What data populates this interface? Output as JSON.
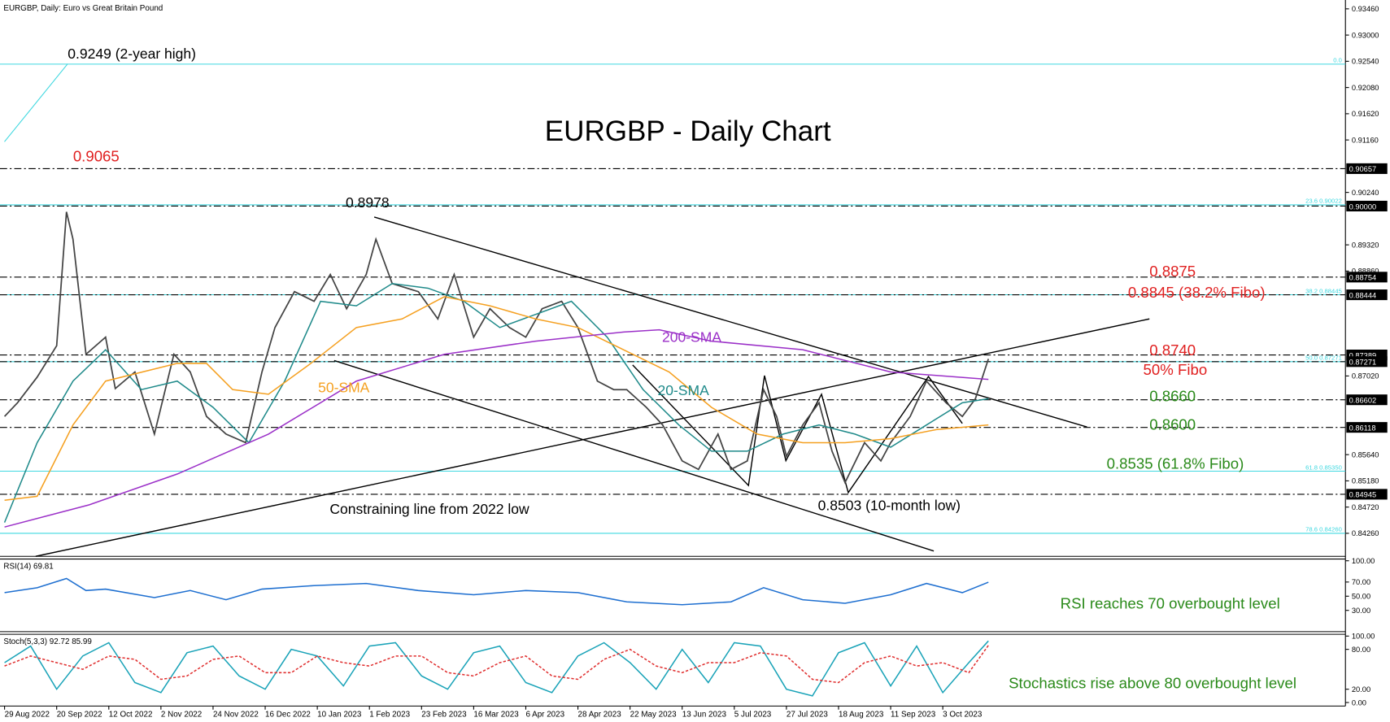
{
  "chart_data": [
    {
      "type": "line",
      "title": "EURGBP - Daily Chart",
      "subtitle": "EURGBP, Daily:  Euro vs Great Britain Pound",
      "xlim": [
        -1.4,
        411.6
      ],
      "xticks": [
        {
          "value": 0,
          "label": "29 Aug 2022"
        },
        {
          "value": 16,
          "label": "20 Sep 2022"
        },
        {
          "value": 32,
          "label": "12 Oct 2022"
        },
        {
          "value": 48,
          "label": "2 Nov 2022"
        },
        {
          "value": 64,
          "label": "24 Nov 2022"
        },
        {
          "value": 80,
          "label": "16 Dec 2022"
        },
        {
          "value": 96,
          "label": "10 Jan 2023"
        },
        {
          "value": 112,
          "label": "1 Feb 2023"
        },
        {
          "value": 128,
          "label": "23 Feb 2023"
        },
        {
          "value": 144,
          "label": "16 Mar 2023"
        },
        {
          "value": 160,
          "label": "6 Apr 2023"
        },
        {
          "value": 176,
          "label": "28 Apr 2023"
        },
        {
          "value": 192,
          "label": "22 May 2023"
        },
        {
          "value": 208,
          "label": "13 Jun 2023"
        },
        {
          "value": 224,
          "label": "5 Jul 2023"
        },
        {
          "value": 240,
          "label": "27 Jul 2023"
        },
        {
          "value": 256,
          "label": "18 Aug 2023"
        },
        {
          "value": 272,
          "label": "11 Sep 2023"
        },
        {
          "value": 288,
          "label": "3 Oct 2023"
        }
      ],
      "ylim": [
        0.83856,
        0.93615
      ],
      "yticks": [
        {
          "value": 0.9346,
          "label": "0.93460"
        },
        {
          "value": 0.93,
          "label": "0.93000"
        },
        {
          "value": 0.9254,
          "label": "0.92540"
        },
        {
          "value": 0.9208,
          "label": "0.92080"
        },
        {
          "value": 0.9162,
          "label": "0.91620"
        },
        {
          "value": 0.9116,
          "label": "0.91160"
        },
        {
          "value": 0.9024,
          "label": "0.90240"
        },
        {
          "value": 0.8932,
          "label": "0.89320"
        },
        {
          "value": 0.8886,
          "label": "0.88860"
        },
        {
          "value": 0.8702,
          "label": "0.87020"
        },
        {
          "value": 0.8564,
          "label": "0.85640"
        },
        {
          "value": 0.8518,
          "label": "0.85180"
        },
        {
          "value": 0.8472,
          "label": "0.84720"
        },
        {
          "value": 0.8426,
          "label": "0.84260"
        }
      ],
      "marked_levels": [
        0.90657,
        {
          "value": 0.9,
          "label": "0.90000"
        },
        0.88754,
        0.88444,
        0.87389,
        0.87271,
        0.86602,
        0.86118,
        0.84945
      ],
      "fibo_color": "#3fd8e0",
      "fibo_levels": [
        {
          "value": 0.9249,
          "label": "0.0"
        },
        {
          "value": 0.90022,
          "label": "23.6 0.90022"
        },
        {
          "value": 0.88445,
          "label": "38.2 0.88445"
        },
        {
          "value": 0.87271,
          "label": "50.0 0.87271"
        },
        {
          "value": 0.8535,
          "label": "61.8 0.85350"
        },
        {
          "value": 0.8426,
          "label": "78.6 0.84260"
        }
      ],
      "series": [
        {
          "color": "#444444",
          "x": [
            0,
            4,
            10,
            16,
            19,
            21,
            25,
            31,
            34,
            40,
            46,
            52,
            57,
            62,
            68,
            74,
            79,
            83,
            89,
            95,
            100,
            105,
            111,
            114,
            119,
            127,
            133,
            138,
            144,
            149,
            155,
            160,
            165,
            171,
            176,
            182,
            187,
            191,
            197,
            202,
            208,
            213,
            219,
            223,
            228,
            233,
            237,
            240,
            245,
            250,
            254,
            258,
            264,
            269,
            272,
            278,
            283,
            289,
            294,
            298,
            302
          ],
          "values": [
            0.8631,
            0.8655,
            0.87,
            0.8755,
            0.899,
            0.8942,
            0.874,
            0.877,
            0.868,
            0.8709,
            0.86,
            0.874,
            0.8709,
            0.8631,
            0.86,
            0.8585,
            0.8709,
            0.8787,
            0.885,
            0.8833,
            0.888,
            0.882,
            0.888,
            0.8942,
            0.8864,
            0.885,
            0.8802,
            0.888,
            0.877,
            0.882,
            0.8787,
            0.877,
            0.882,
            0.8833,
            0.8787,
            0.8693,
            0.8678,
            0.8678,
            0.8647,
            0.8616,
            0.8553,
            0.8538,
            0.86,
            0.8538,
            0.8553,
            0.8678,
            0.8631,
            0.8561,
            0.8616,
            0.8655,
            0.857,
            0.8515,
            0.8585,
            0.8553,
            0.8585,
            0.8631,
            0.8693,
            0.8655,
            0.8631,
            0.8662,
            0.8732
          ]
        },
        {
          "name": "20-SMA",
          "color": "#1f8a8a",
          "x": [
            0,
            10,
            21,
            31,
            42,
            53,
            64,
            75,
            86,
            97,
            108,
            119,
            130,
            141,
            152,
            163,
            174,
            185,
            196,
            207,
            217,
            228,
            239,
            250,
            261,
            272,
            283,
            294,
            302
          ],
          "values": [
            0.8445,
            0.8585,
            0.8693,
            0.8748,
            0.8678,
            0.8693,
            0.8647,
            0.8585,
            0.8693,
            0.8833,
            0.8825,
            0.8864,
            0.8856,
            0.8833,
            0.8787,
            0.881,
            0.8833,
            0.877,
            0.8678,
            0.8616,
            0.857,
            0.857,
            0.86,
            0.8616,
            0.86,
            0.8577,
            0.8616,
            0.8655,
            0.8662
          ]
        },
        {
          "name": "50-SMA",
          "color": "#f5a020",
          "x": [
            0,
            10,
            21,
            31,
            53,
            62,
            70,
            81,
            94,
            108,
            122,
            135,
            149,
            163,
            176,
            190,
            204,
            217,
            231,
            245,
            258,
            272,
            286,
            302
          ],
          "values": [
            0.8484,
            0.8491,
            0.8616,
            0.8693,
            0.8724,
            0.8724,
            0.8678,
            0.867,
            0.8724,
            0.8787,
            0.8802,
            0.8841,
            0.8825,
            0.8802,
            0.8787,
            0.8748,
            0.8709,
            0.8647,
            0.86,
            0.8585,
            0.8585,
            0.8592,
            0.8608,
            0.8616
          ]
        },
        {
          "name": "200-SMA",
          "color": "#9b30c8",
          "x": [
            0,
            26,
            53,
            81,
            108,
            135,
            163,
            190,
            201,
            217,
            245,
            272,
            302
          ],
          "values": [
            0.8437,
            0.8476,
            0.853,
            0.86,
            0.8693,
            0.874,
            0.8763,
            0.8779,
            0.8783,
            0.8763,
            0.8748,
            0.8709,
            0.8696
          ]
        }
      ],
      "annotations": [
        {
          "text": "0.9249 (2-year high)",
          "color": "#000000"
        },
        {
          "text": "0.9065",
          "color": "#e02020"
        },
        {
          "text": "0.8978",
          "color": "#000000"
        },
        {
          "text": "0.8875",
          "color": "#e02020"
        },
        {
          "text": "0.8845 (38.2% Fibo)",
          "color": "#e02020"
        },
        {
          "text": "0.8740",
          "color": "#e02020"
        },
        {
          "text": "50% Fibo",
          "color": "#e02020"
        },
        {
          "text": "0.8660",
          "color": "#2a8a1a"
        },
        {
          "text": "0.8600",
          "color": "#2a8a1a"
        },
        {
          "text": "0.8535 (61.8% Fibo)",
          "color": "#2a8a1a"
        },
        {
          "text": "0.8503 (10-month low)",
          "color": "#000000"
        },
        {
          "text": "Constraining line from 2022 low",
          "color": "#000000"
        }
      ]
    },
    {
      "type": "line",
      "title": "RSI(14) 69.81",
      "note": "RSI reaches 70 overbought level",
      "note_color": "#2a8a1a",
      "ylim": [
        0,
        100
      ],
      "yticks": [
        {
          "value": 100,
          "label": "100.00"
        },
        {
          "value": 70,
          "label": "70.00"
        },
        {
          "value": 50,
          "label": "50.00"
        },
        {
          "value": 30,
          "label": "30.00"
        }
      ],
      "series": [
        {
          "color": "#1e6fd0",
          "x": [
            0,
            10,
            19,
            25,
            31,
            46,
            57,
            68,
            79,
            95,
            111,
            127,
            144,
            160,
            176,
            191,
            208,
            223,
            233,
            245,
            258,
            272,
            283,
            294,
            302
          ],
          "values": [
            55,
            62,
            75,
            58,
            60,
            48,
            58,
            45,
            60,
            65,
            68,
            58,
            52,
            58,
            55,
            42,
            38,
            42,
            62,
            45,
            40,
            52,
            68,
            55,
            69.81
          ]
        }
      ]
    },
    {
      "type": "line",
      "title": "Stoch(5,3,3) 92.72 85.99",
      "note": "Stochastics rise above 80 overbought level",
      "note_color": "#2a8a1a",
      "ylim": [
        0,
        100
      ],
      "yticks": [
        {
          "value": 100,
          "label": "100.00"
        },
        {
          "value": 80,
          "label": "80.00"
        },
        {
          "value": 20,
          "label": "20.00"
        },
        {
          "value": 0,
          "label": "0.00"
        }
      ],
      "series": [
        {
          "color": "#1aa3b8",
          "x": [
            0,
            8,
            16,
            24,
            32,
            40,
            48,
            56,
            64,
            72,
            80,
            88,
            96,
            104,
            112,
            120,
            128,
            136,
            144,
            152,
            160,
            168,
            176,
            184,
            192,
            200,
            208,
            216,
            224,
            232,
            240,
            248,
            256,
            264,
            272,
            280,
            288,
            296,
            302
          ],
          "values": [
            60,
            85,
            20,
            70,
            90,
            30,
            15,
            75,
            85,
            40,
            20,
            80,
            70,
            25,
            85,
            90,
            40,
            20,
            75,
            85,
            30,
            15,
            70,
            90,
            60,
            20,
            80,
            30,
            90,
            85,
            20,
            10,
            75,
            90,
            25,
            85,
            15,
            60,
            92.72
          ]
        },
        {
          "color": "#e03030",
          "dash": true,
          "x": [
            0,
            8,
            16,
            24,
            32,
            40,
            48,
            56,
            64,
            72,
            80,
            88,
            96,
            104,
            112,
            120,
            128,
            136,
            144,
            152,
            160,
            168,
            176,
            184,
            192,
            200,
            208,
            216,
            224,
            232,
            240,
            248,
            256,
            264,
            272,
            280,
            288,
            296,
            302
          ],
          "values": [
            55,
            70,
            60,
            50,
            70,
            65,
            35,
            40,
            65,
            70,
            45,
            45,
            70,
            60,
            55,
            70,
            70,
            45,
            40,
            60,
            70,
            40,
            35,
            65,
            80,
            55,
            45,
            60,
            60,
            75,
            70,
            35,
            30,
            60,
            70,
            55,
            60,
            45,
            85.99
          ]
        }
      ]
    }
  ]
}
